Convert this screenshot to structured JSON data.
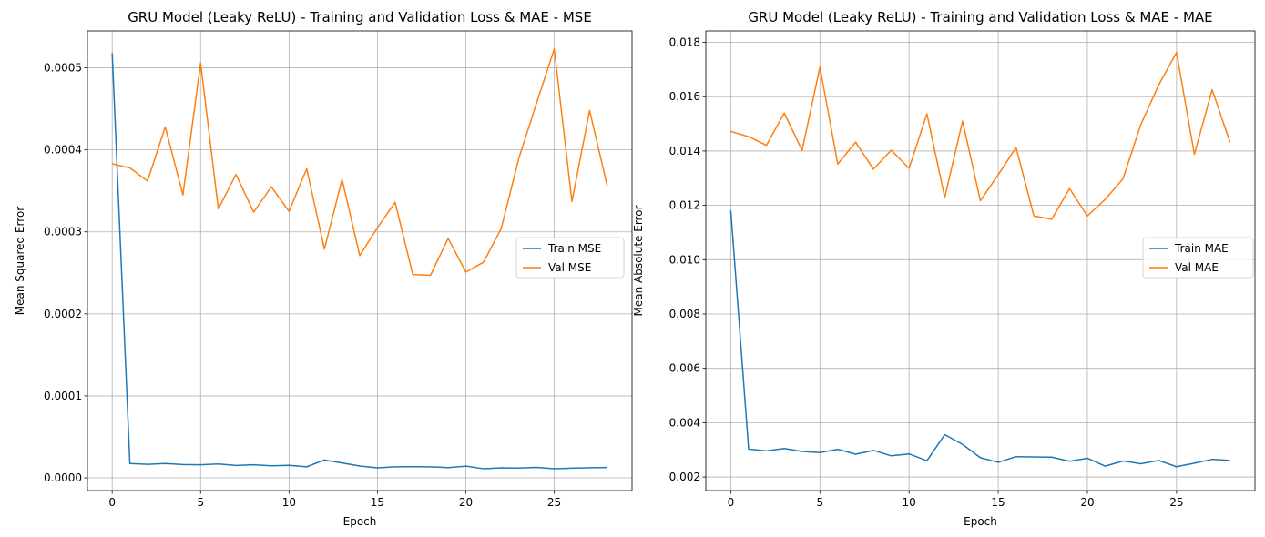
{
  "chart_data": [
    {
      "type": "line",
      "title": "GRU Model (Leaky ReLU) - Training and Validation Loss & MAE - MSE",
      "xlabel": "Epoch",
      "ylabel": "Mean Squared Error",
      "xlim": [
        -1.4,
        29.4
      ],
      "ylim": [
        -1.55e-05,
        0.000545
      ],
      "xticks": [
        0,
        5,
        10,
        15,
        20,
        25
      ],
      "xtick_labels": [
        "0",
        "5",
        "10",
        "15",
        "20",
        "25"
      ],
      "yticks": [
        0.0,
        0.0001,
        0.0002,
        0.0003,
        0.0004,
        0.0005
      ],
      "ytick_labels": [
        "0.0000",
        "0.0001",
        "0.0002",
        "0.0003",
        "0.0004",
        "0.0005"
      ],
      "grid": true,
      "legend_position": "center-right",
      "x": [
        0,
        1,
        2,
        3,
        4,
        5,
        6,
        7,
        8,
        9,
        10,
        11,
        12,
        13,
        14,
        15,
        16,
        17,
        18,
        19,
        20,
        21,
        22,
        23,
        24,
        25,
        26,
        27,
        28
      ],
      "series": [
        {
          "name": "Train MSE",
          "color": "#1f77b4",
          "values": [
            0.000518,
            1.75e-05,
            1.65e-05,
            1.75e-05,
            1.63e-05,
            1.6e-05,
            1.7e-05,
            1.52e-05,
            1.6e-05,
            1.48e-05,
            1.53e-05,
            1.35e-05,
            2.18e-05,
            1.82e-05,
            1.45e-05,
            1.22e-05,
            1.35e-05,
            1.36e-05,
            1.35e-05,
            1.25e-05,
            1.43e-05,
            1.12e-05,
            1.23e-05,
            1.2e-05,
            1.28e-05,
            1.12e-05,
            1.18e-05,
            1.24e-05,
            1.26e-05
          ]
        },
        {
          "name": "Val MSE",
          "color": "#ff7f0e",
          "values": [
            0.000383,
            0.000378,
            0.000362,
            0.000428,
            0.000345,
            0.000506,
            0.000328,
            0.00037,
            0.000324,
            0.000355,
            0.000325,
            0.000377,
            0.000279,
            0.000364,
            0.000271,
            0.000305,
            0.000336,
            0.000248,
            0.000247,
            0.000292,
            0.000251,
            0.000263,
            0.000304,
            0.00039,
            0.000457,
            0.000523,
            0.000337,
            0.000448,
            0.000356
          ]
        }
      ]
    },
    {
      "type": "line",
      "title": "GRU Model (Leaky ReLU) - Training and Validation Loss & MAE - MAE",
      "xlabel": "Epoch",
      "ylabel": "Mean Absolute Error",
      "xlim": [
        -1.4,
        29.4
      ],
      "ylim": [
        0.0015,
        0.01842
      ],
      "xticks": [
        0,
        5,
        10,
        15,
        20,
        25
      ],
      "xtick_labels": [
        "0",
        "5",
        "10",
        "15",
        "20",
        "25"
      ],
      "yticks": [
        0.002,
        0.004,
        0.006,
        0.008,
        0.01,
        0.012,
        0.014,
        0.016,
        0.018
      ],
      "ytick_labels": [
        "0.002",
        "0.004",
        "0.006",
        "0.008",
        "0.010",
        "0.012",
        "0.014",
        "0.016",
        "0.018"
      ],
      "grid": true,
      "legend_position": "center-right",
      "x": [
        0,
        1,
        2,
        3,
        4,
        5,
        6,
        7,
        8,
        9,
        10,
        11,
        12,
        13,
        14,
        15,
        16,
        17,
        18,
        19,
        20,
        21,
        22,
        23,
        24,
        25,
        26,
        27,
        28
      ],
      "series": [
        {
          "name": "Train MAE",
          "color": "#1f77b4",
          "values": [
            0.01181,
            0.00303,
            0.00296,
            0.00305,
            0.00294,
            0.0029,
            0.00302,
            0.00284,
            0.00298,
            0.00278,
            0.00285,
            0.0026,
            0.00356,
            0.0032,
            0.00271,
            0.00254,
            0.00275,
            0.00274,
            0.00273,
            0.00258,
            0.00269,
            0.0024,
            0.00259,
            0.00249,
            0.00261,
            0.00238,
            0.00251,
            0.00265,
            0.00261
          ]
        },
        {
          "name": "Val MAE",
          "color": "#ff7f0e",
          "values": [
            0.01472,
            0.01453,
            0.01421,
            0.0154,
            0.01402,
            0.01709,
            0.01352,
            0.01433,
            0.01333,
            0.01403,
            0.01336,
            0.01537,
            0.01229,
            0.0151,
            0.01217,
            0.01313,
            0.01413,
            0.01161,
            0.01149,
            0.01262,
            0.01161,
            0.01222,
            0.01298,
            0.01498,
            0.01643,
            0.01763,
            0.01388,
            0.01626,
            0.01432
          ]
        }
      ]
    }
  ]
}
